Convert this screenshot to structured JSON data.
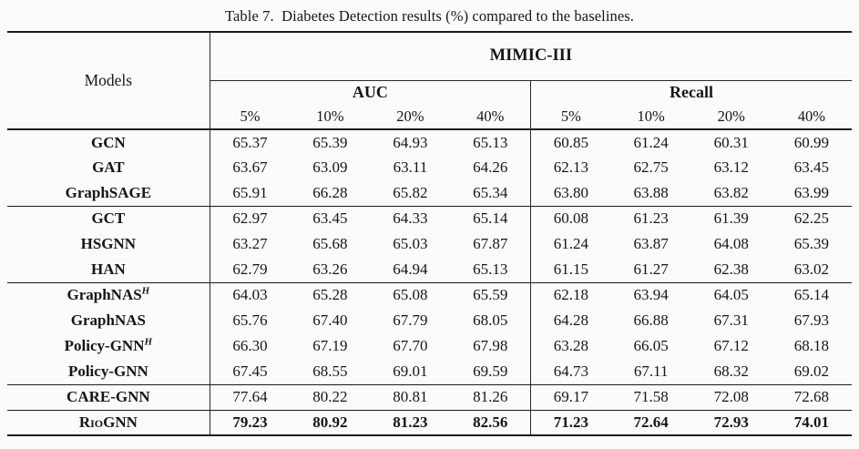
{
  "caption": "Table 7.  Diabetes Detection results (%) compared to the baselines.",
  "table": {
    "models_header": "Models",
    "dataset_header": "MIMIC-III",
    "group_headers": {
      "auc": "AUC",
      "recall": "Recall"
    },
    "percent_headers": [
      "5%",
      "10%",
      "20%",
      "40%"
    ],
    "rows": [
      {
        "name": "GCN",
        "auc": [
          "65.37",
          "65.39",
          "64.93",
          "65.13"
        ],
        "recall": [
          "60.85",
          "61.24",
          "60.31",
          "60.99"
        ]
      },
      {
        "name": "GAT",
        "auc": [
          "63.67",
          "63.09",
          "63.11",
          "64.26"
        ],
        "recall": [
          "62.13",
          "62.75",
          "63.12",
          "63.45"
        ]
      },
      {
        "name": "GraphSAGE",
        "auc": [
          "65.91",
          "66.28",
          "65.82",
          "65.34"
        ],
        "recall": [
          "63.80",
          "63.88",
          "63.82",
          "63.99"
        ]
      },
      {
        "name": "GCT",
        "auc": [
          "62.97",
          "63.45",
          "64.33",
          "65.14"
        ],
        "recall": [
          "60.08",
          "61.23",
          "61.39",
          "62.25"
        ]
      },
      {
        "name": "HSGNN",
        "auc": [
          "63.27",
          "65.68",
          "65.03",
          "67.87"
        ],
        "recall": [
          "61.24",
          "63.87",
          "64.08",
          "65.39"
        ]
      },
      {
        "name": "HAN",
        "auc": [
          "62.79",
          "63.26",
          "64.94",
          "65.13"
        ],
        "recall": [
          "61.15",
          "61.27",
          "62.38",
          "63.02"
        ]
      },
      {
        "name": "GraphNAS",
        "sup": "H",
        "auc": [
          "64.03",
          "65.28",
          "65.08",
          "65.59"
        ],
        "recall": [
          "62.18",
          "63.94",
          "64.05",
          "65.14"
        ]
      },
      {
        "name": "GraphNAS",
        "auc": [
          "65.76",
          "67.40",
          "67.79",
          "68.05"
        ],
        "recall": [
          "64.28",
          "66.88",
          "67.31",
          "67.93"
        ]
      },
      {
        "name": "Policy-GNN",
        "sup": "H",
        "auc": [
          "66.30",
          "67.19",
          "67.70",
          "67.98"
        ],
        "recall": [
          "63.28",
          "66.05",
          "67.12",
          "68.18"
        ]
      },
      {
        "name": "Policy-GNN",
        "auc": [
          "67.45",
          "68.55",
          "69.01",
          "69.59"
        ],
        "recall": [
          "64.73",
          "67.11",
          "68.32",
          "69.02"
        ]
      },
      {
        "name": "CARE-GNN",
        "auc": [
          "77.64",
          "80.22",
          "80.81",
          "81.26"
        ],
        "recall": [
          "69.17",
          "71.58",
          "72.08",
          "72.68"
        ]
      },
      {
        "name": "RioGNN",
        "auc": [
          "79.23",
          "80.92",
          "81.23",
          "82.56"
        ],
        "recall": [
          "71.23",
          "72.64",
          "72.93",
          "74.01"
        ]
      }
    ]
  }
}
